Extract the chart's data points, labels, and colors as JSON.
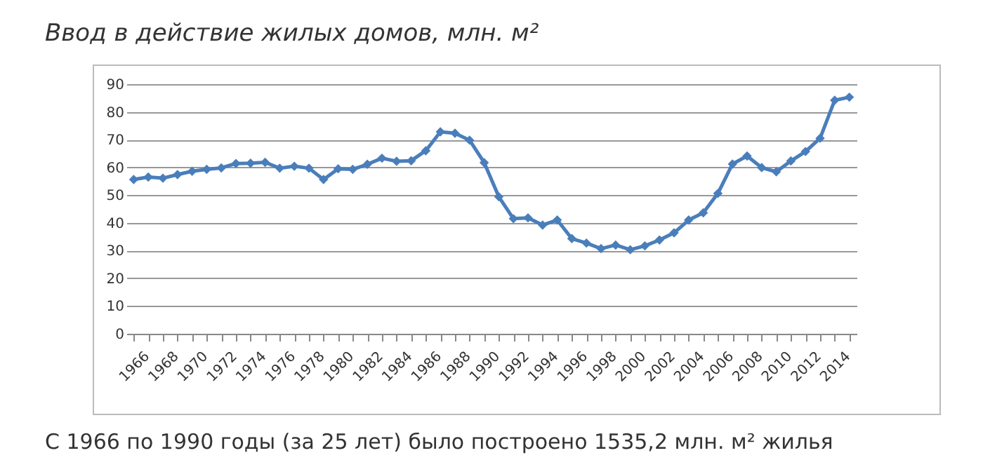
{
  "chart_data": {
    "type": "line",
    "title": "Ввод в действие жилых домов, млн. м²",
    "annotations": [
      "С 1966 по 1990 годы (за 25 лет) было построено 1535,2 млн. м² жилья"
    ],
    "categories": [
      "1966",
      null,
      "1968",
      null,
      "1970",
      null,
      "1972",
      null,
      "1974",
      null,
      "1976",
      null,
      "1978",
      null,
      "1980",
      null,
      "1982",
      null,
      "1984",
      null,
      "1986",
      null,
      "1988",
      null,
      "1990",
      null,
      "1992",
      null,
      "1994",
      null,
      "1996",
      null,
      "1998",
      null,
      "2000",
      null,
      "2002",
      null,
      "2004",
      null,
      "2006",
      null,
      "2008",
      null,
      "2010",
      null,
      "2012",
      null,
      "2014",
      null
    ],
    "series": [
      {
        "color": "#4a7ebb",
        "values": [
          55.6,
          56.5,
          56.1,
          57.4,
          58.6,
          59.3,
          59.8,
          61.4,
          61.5,
          61.8,
          59.7,
          60.4,
          59.7,
          55.6,
          59.5,
          59.3,
          61.1,
          63.3,
          62.2,
          62.4,
          66.0,
          72.8,
          72.3,
          69.8,
          61.7,
          49.4,
          41.5,
          41.8,
          39.2,
          41.0,
          34.3,
          32.7,
          30.7,
          32.0,
          30.3,
          31.7,
          33.8,
          36.4,
          41.0,
          43.6,
          50.6,
          61.2,
          64.1,
          59.9,
          58.4,
          62.3,
          65.7,
          70.5,
          84.2,
          85.3
        ]
      }
    ],
    "ylim": [
      0,
      90
    ],
    "yticks": [
      0,
      10,
      20,
      30,
      40,
      50,
      60,
      70,
      80,
      90
    ],
    "grid": "y",
    "marker": "diamond",
    "line_style": "solid",
    "legend": false
  }
}
